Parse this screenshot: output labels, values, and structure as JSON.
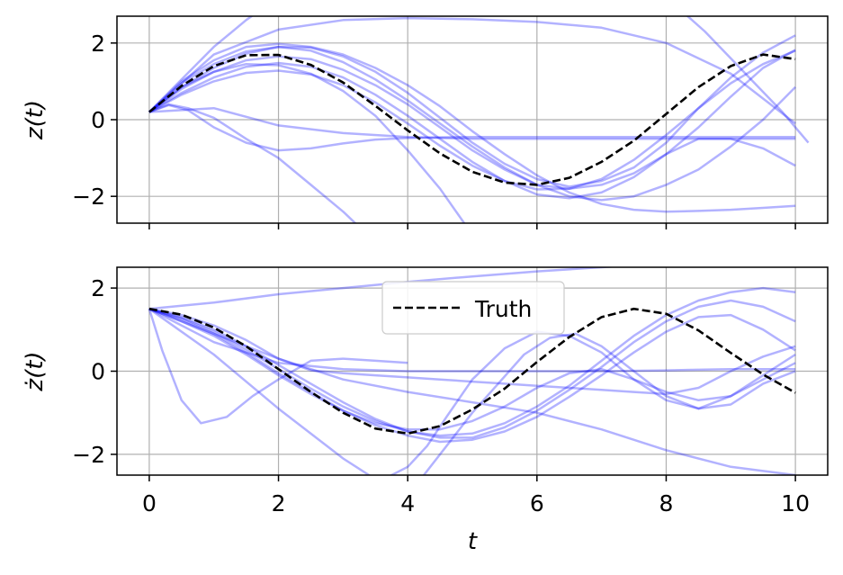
{
  "chart_data": [
    {
      "type": "line",
      "ylabel": "z(t)",
      "xlim": [
        -0.5,
        10.5
      ],
      "ylim": [
        -2.7,
        2.7
      ],
      "xticks": [
        0,
        2,
        4,
        6,
        8,
        10
      ],
      "yticks": [
        -2,
        0,
        2
      ],
      "ytick_labels": [
        "−2",
        "0",
        "2"
      ],
      "grid": true,
      "show_xtick_labels": false,
      "truth": {
        "name": "Truth",
        "color": "#000000",
        "style": "dashed",
        "x": [
          0,
          0.5,
          1,
          1.5,
          2,
          2.5,
          3,
          3.5,
          4,
          4.5,
          5,
          5.5,
          6,
          6.5,
          7,
          7.5,
          8,
          8.5,
          9,
          9.5,
          10
        ],
        "y": [
          0.2,
          0.88,
          1.4,
          1.68,
          1.69,
          1.43,
          0.97,
          0.36,
          -0.28,
          -0.88,
          -1.36,
          -1.64,
          -1.7,
          -1.52,
          -1.1,
          -0.55,
          0.15,
          0.85,
          1.4,
          1.7,
          1.58
        ]
      },
      "samples_color": "#0000ff",
      "samples_opacity": 0.3,
      "samples": [
        {
          "x": [
            0,
            0.5,
            1,
            1.5,
            2,
            2.5,
            3
          ],
          "y": [
            0.2,
            1.05,
            1.9,
            2.6,
            3.2,
            3.7,
            4.1
          ]
        },
        {
          "x": [
            0,
            1,
            2,
            3,
            4,
            5,
            6,
            7,
            8,
            9,
            10
          ],
          "y": [
            0.2,
            1.7,
            2.35,
            2.6,
            2.65,
            2.62,
            2.55,
            2.4,
            2.0,
            1.2,
            -0.1
          ]
        },
        {
          "x": [
            0,
            0.5,
            1,
            1.5,
            2,
            2.5,
            3,
            3.5,
            4,
            4.5,
            5,
            5.5,
            6,
            6.5,
            7,
            7.5,
            8,
            8.5,
            9,
            9.5,
            10
          ],
          "y": [
            0.2,
            1.0,
            1.55,
            1.9,
            1.98,
            1.9,
            1.7,
            1.35,
            0.9,
            0.35,
            -0.3,
            -0.9,
            -1.45,
            -1.9,
            -2.2,
            -2.35,
            -2.4,
            -2.38,
            -2.35,
            -2.3,
            -2.25
          ]
        },
        {
          "x": [
            0,
            0.5,
            1,
            1.5,
            2,
            2.5,
            3,
            3.5,
            4,
            4.5,
            5,
            5.5,
            6,
            6.5,
            7,
            7.5,
            8,
            8.5,
            9,
            9.5,
            10
          ],
          "y": [
            0.2,
            0.95,
            1.45,
            1.78,
            1.9,
            1.8,
            1.5,
            1.05,
            0.5,
            -0.1,
            -0.7,
            -1.25,
            -1.7,
            -2.0,
            -2.1,
            -2.0,
            -1.7,
            -1.3,
            -0.7,
            0.0,
            0.85
          ]
        },
        {
          "x": [
            0,
            0.5,
            1,
            1.5,
            2,
            2.5,
            3,
            3.5,
            4,
            4.5,
            5,
            5.5,
            6,
            6.5,
            7,
            7.5,
            8,
            8.5,
            9,
            9.5,
            10
          ],
          "y": [
            0.2,
            0.85,
            1.35,
            1.72,
            1.9,
            1.88,
            1.65,
            1.25,
            0.7,
            0.05,
            -0.6,
            -1.15,
            -1.55,
            -1.75,
            -1.6,
            -1.25,
            -0.6,
            0.3,
            1.1,
            1.75,
            2.2
          ]
        },
        {
          "x": [
            0,
            0.5,
            1,
            1.5,
            2,
            2.5,
            3,
            3.5,
            4,
            4.5,
            5,
            5.5,
            6,
            6.5,
            7,
            7.5,
            8,
            8.5,
            9,
            9.5,
            10
          ],
          "y": [
            0.2,
            0.8,
            1.25,
            1.55,
            1.65,
            1.58,
            1.3,
            0.9,
            0.4,
            -0.2,
            -0.8,
            -1.3,
            -1.7,
            -1.8,
            -1.7,
            -1.4,
            -0.9,
            -0.2,
            0.6,
            1.35,
            1.82
          ]
        },
        {
          "x": [
            0,
            0.5,
            1,
            1.5,
            2,
            2.5,
            3,
            3.5,
            4,
            4.5,
            5,
            5.5,
            6,
            6.5,
            7,
            7.5,
            8,
            8.5,
            9,
            9.5,
            10
          ],
          "y": [
            0.2,
            0.7,
            1.1,
            1.38,
            1.48,
            1.38,
            1.1,
            0.65,
            0.1,
            -0.5,
            -1.1,
            -1.6,
            -1.95,
            -2.05,
            -1.9,
            -1.5,
            -0.9,
            -0.5,
            -0.5,
            -0.75,
            -1.2
          ]
        },
        {
          "x": [
            0,
            0.5,
            1,
            1.5,
            2,
            2.5,
            3,
            3.5,
            4,
            4.5,
            5,
            5.5,
            6,
            6.5,
            7,
            7.5,
            8,
            8.5,
            9,
            9.5,
            10
          ],
          "y": [
            0.2,
            0.65,
            1.0,
            1.22,
            1.28,
            1.18,
            0.9,
            0.45,
            -0.1,
            -0.68,
            -1.2,
            -1.6,
            -1.82,
            -1.8,
            -1.55,
            -1.05,
            -0.4,
            0.3,
            0.95,
            1.45,
            1.8
          ]
        },
        {
          "x": [
            0,
            1,
            2,
            3,
            4,
            5,
            6,
            7,
            8,
            9,
            10
          ],
          "y": [
            0.2,
            0.3,
            -0.15,
            -0.35,
            -0.45,
            -0.5,
            -0.5,
            -0.5,
            -0.5,
            -0.5,
            -0.5
          ]
        },
        {
          "x": [
            0,
            0.3,
            0.6,
            1,
            1.5,
            2,
            2.5,
            3,
            3.5
          ],
          "y": [
            0.2,
            0.4,
            0.3,
            0.05,
            -0.5,
            -1.0,
            -1.7,
            -2.4,
            -3.2
          ]
        },
        {
          "x": [
            0,
            0.3,
            0.6,
            1,
            1.5,
            2,
            2.5,
            3,
            3.5,
            4,
            4.5,
            5,
            6,
            7,
            8,
            9,
            10
          ],
          "y": [
            0.2,
            0.38,
            0.25,
            -0.2,
            -0.6,
            -0.8,
            -0.75,
            -0.62,
            -0.52,
            -0.48,
            -0.46,
            -0.45,
            -0.45,
            -0.45,
            -0.45,
            -0.45,
            -0.45
          ]
        },
        {
          "x": [
            0,
            0.5,
            1,
            1.5,
            2,
            2.5,
            3,
            3.5,
            4,
            4.5,
            5
          ],
          "y": [
            0.2,
            0.85,
            1.25,
            1.45,
            1.42,
            1.2,
            0.75,
            0.1,
            -0.8,
            -1.8,
            -3.0
          ]
        },
        {
          "x": [
            8.2,
            8.6,
            9.0,
            9.4,
            9.8,
            10.2
          ],
          "y": [
            2.9,
            2.3,
            1.6,
            0.9,
            0.2,
            -0.6
          ]
        }
      ]
    },
    {
      "type": "line",
      "ylabel": "ż(t)",
      "xlabel": "t",
      "xlim": [
        -0.5,
        10.5
      ],
      "ylim": [
        -2.5,
        2.5
      ],
      "xticks": [
        0,
        2,
        4,
        6,
        8,
        10
      ],
      "xtick_labels": [
        "0",
        "2",
        "4",
        "6",
        "8",
        "10"
      ],
      "yticks": [
        -2,
        0,
        2
      ],
      "ytick_labels": [
        "−2",
        "0",
        "2"
      ],
      "grid": true,
      "show_xtick_labels": true,
      "legend": {
        "label": "Truth",
        "placement": "upper-center"
      },
      "truth": {
        "name": "Truth",
        "color": "#000000",
        "style": "dashed",
        "x": [
          0,
          0.5,
          1,
          1.5,
          2,
          2.5,
          3,
          3.5,
          4,
          4.5,
          5,
          5.5,
          6,
          6.5,
          7,
          7.5,
          8,
          8.5,
          9,
          9.5,
          10
        ],
        "y": [
          1.5,
          1.36,
          1.05,
          0.6,
          0.05,
          -0.5,
          -1.0,
          -1.38,
          -1.5,
          -1.32,
          -0.92,
          -0.42,
          0.22,
          0.82,
          1.3,
          1.5,
          1.38,
          0.98,
          0.44,
          -0.08,
          -0.52
        ]
      },
      "samples_color": "#0000ff",
      "samples_opacity": 0.3,
      "samples": [
        {
          "x": [
            0,
            1,
            2,
            3,
            4,
            5,
            6,
            7,
            8
          ],
          "y": [
            1.5,
            1.65,
            1.85,
            2.0,
            2.15,
            2.28,
            2.4,
            2.5,
            2.6
          ]
        },
        {
          "x": [
            0,
            0.2,
            0.5,
            0.8,
            1.2,
            1.6,
            2,
            2.5,
            3,
            3.5,
            4
          ],
          "y": [
            1.5,
            0.5,
            -0.7,
            -1.25,
            -1.1,
            -0.6,
            -0.2,
            0.25,
            0.3,
            0.25,
            0.2
          ]
        },
        {
          "x": [
            0,
            1,
            2,
            3,
            4,
            5,
            6,
            7,
            8,
            9,
            10
          ],
          "y": [
            1.5,
            0.9,
            0.3,
            -0.2,
            -0.5,
            -0.75,
            -1.0,
            -1.4,
            -1.9,
            -2.3,
            -2.5
          ]
        },
        {
          "x": [
            0,
            1,
            2,
            3,
            3.5
          ],
          "y": [
            1.5,
            0.4,
            -0.9,
            -2.1,
            -2.6
          ]
        },
        {
          "x": [
            0,
            0.5,
            1,
            1.5,
            2,
            2.5,
            3,
            3.5,
            4,
            4.5,
            5,
            5.5,
            6,
            6.5,
            7,
            7.5,
            8,
            8.5,
            9,
            9.5,
            10
          ],
          "y": [
            1.5,
            1.35,
            1.1,
            0.75,
            0.3,
            0.02,
            -0.05,
            -0.1,
            -0.15,
            -0.2,
            -0.25,
            -0.3,
            -0.35,
            -0.4,
            -0.45,
            -0.5,
            -0.55,
            -0.4,
            0.0,
            0.35,
            0.6
          ]
        },
        {
          "x": [
            0,
            1,
            2,
            3,
            4,
            5,
            6,
            7,
            8,
            9,
            10
          ],
          "y": [
            1.5,
            0.7,
            0.2,
            0.05,
            0.0,
            0.0,
            0.0,
            0.0,
            0.02,
            0.05,
            0.05
          ]
        },
        {
          "x": [
            0,
            0.5,
            1,
            1.5,
            2,
            2.5,
            3,
            3.5,
            4,
            4.5,
            5,
            5.5,
            6,
            6.5,
            7,
            7.5,
            8,
            8.5,
            9,
            9.5,
            10
          ],
          "y": [
            1.5,
            1.3,
            1.0,
            0.6,
            0.15,
            -0.3,
            -0.75,
            -1.15,
            -1.45,
            -1.6,
            -1.6,
            -1.35,
            -0.95,
            -0.45,
            0.1,
            0.7,
            1.2,
            1.55,
            1.7,
            1.55,
            1.2
          ]
        },
        {
          "x": [
            0,
            0.5,
            1,
            1.5,
            2,
            2.5,
            3,
            3.5,
            4,
            4.5,
            5,
            5.5,
            6,
            6.5,
            7,
            7.5,
            8,
            8.5,
            9,
            9.5,
            10
          ],
          "y": [
            1.5,
            1.28,
            0.95,
            0.52,
            0.05,
            -0.42,
            -0.85,
            -1.2,
            -1.45,
            -1.55,
            -1.5,
            -1.25,
            -0.85,
            -0.35,
            0.25,
            0.85,
            1.35,
            1.7,
            1.9,
            2.0,
            1.9
          ]
        },
        {
          "x": [
            0,
            0.5,
            1,
            1.5,
            2,
            2.5,
            3,
            3.5,
            4,
            4.5,
            5,
            5.5,
            6,
            6.5,
            7,
            7.5,
            8,
            8.5,
            9,
            9.5,
            10
          ],
          "y": [
            1.5,
            1.25,
            0.9,
            0.45,
            -0.05,
            -0.5,
            -0.95,
            -1.3,
            -1.55,
            -1.7,
            -1.65,
            -1.45,
            -1.1,
            -0.62,
            -0.1,
            0.45,
            0.95,
            1.3,
            1.35,
            1.0,
            0.5
          ]
        },
        {
          "x": [
            0,
            0.5,
            1,
            1.5,
            2,
            2.5,
            3,
            3.5,
            4,
            4.5,
            5,
            5.5,
            6,
            6.5,
            7,
            7.5,
            8,
            8.5,
            9,
            9.5,
            10
          ],
          "y": [
            1.5,
            1.2,
            0.85,
            0.4,
            -0.1,
            -0.55,
            -0.95,
            -1.25,
            -1.4,
            -1.4,
            -1.2,
            -0.85,
            -0.4,
            -0.05,
            0.05,
            -0.2,
            -0.5,
            -0.7,
            -0.6,
            -0.2,
            0.2
          ]
        },
        {
          "x": [
            3.5,
            4.0,
            4.3,
            4.6,
            5.0,
            5.5,
            6.0,
            6.5,
            7.0,
            7.5,
            8.0,
            8.5,
            9.0,
            9.5,
            10.0
          ],
          "y": [
            -2.7,
            -2.3,
            -1.8,
            -1.1,
            -0.2,
            0.55,
            0.95,
            0.85,
            0.45,
            -0.2,
            -0.7,
            -0.9,
            -0.6,
            -0.1,
            0.4
          ]
        },
        {
          "x": [
            4.2,
            4.6,
            5.0,
            5.4,
            5.8,
            6.2,
            6.6,
            7.0,
            7.5,
            8.0,
            8.5,
            9.0,
            9.5,
            10.0
          ],
          "y": [
            -2.6,
            -1.8,
            -1.0,
            -0.3,
            0.4,
            0.8,
            0.9,
            0.6,
            0.0,
            -0.6,
            -0.9,
            -0.8,
            -0.3,
            0.0
          ]
        }
      ]
    }
  ]
}
